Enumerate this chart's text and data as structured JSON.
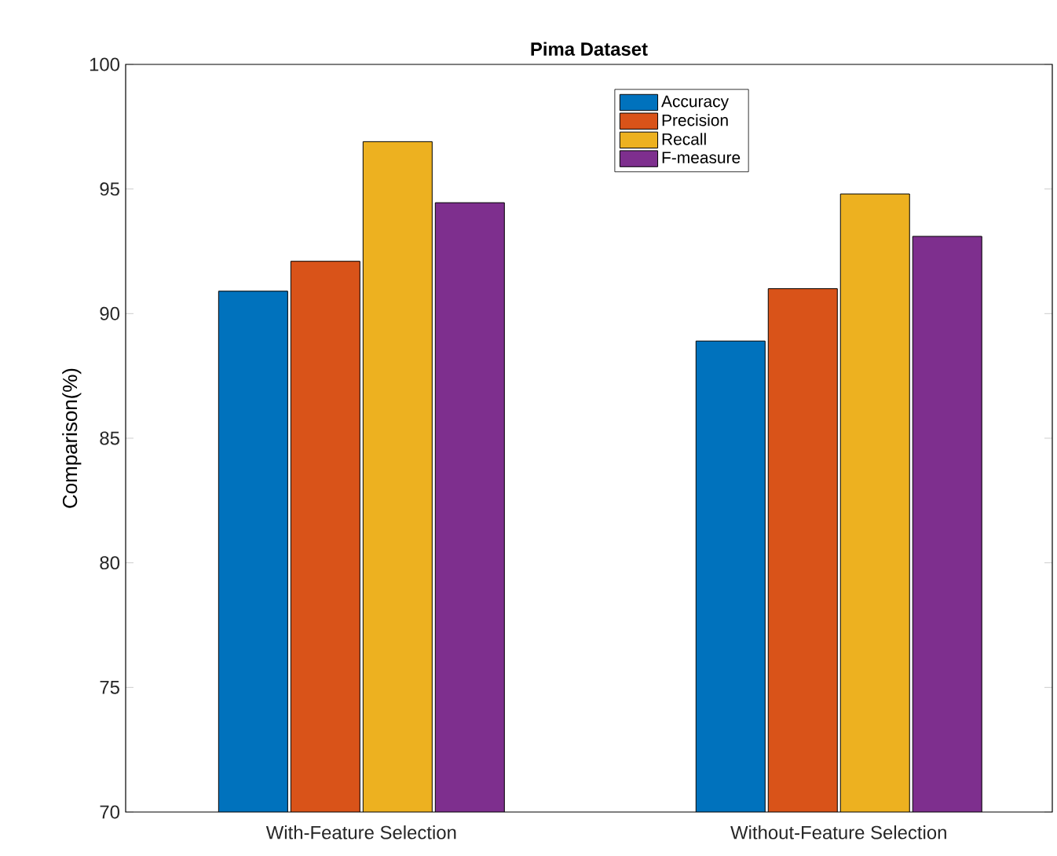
{
  "chart_data": {
    "type": "bar",
    "title": "Pima Dataset",
    "ylabel": "Comparison(%)",
    "categories": [
      "With-Feature Selection",
      "Without-Feature Selection"
    ],
    "series": [
      {
        "name": "Accuracy",
        "color": "#0072bd",
        "values": [
          90.9,
          88.9
        ]
      },
      {
        "name": "Precision",
        "color": "#d95319",
        "values": [
          92.1,
          91.0
        ]
      },
      {
        "name": "Recall",
        "color": "#edb120",
        "values": [
          96.9,
          94.8
        ]
      },
      {
        "name": "F-measure",
        "color": "#7e2f8e",
        "values": [
          94.45,
          93.1
        ]
      }
    ],
    "ylim": [
      70,
      100
    ],
    "yticks": [
      70,
      75,
      80,
      85,
      90,
      95,
      100
    ],
    "legend": "top",
    "grid": false
  }
}
